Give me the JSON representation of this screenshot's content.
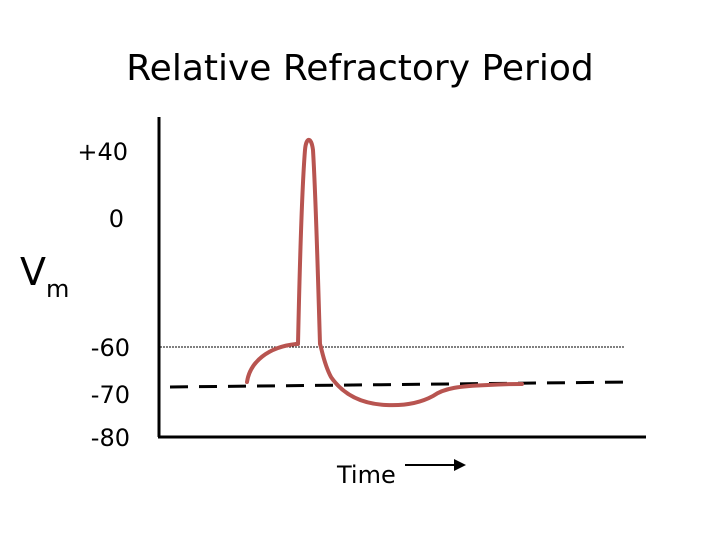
{
  "diagram": {
    "title": "Relative Refractory Period",
    "y_axis": {
      "label_main": "V",
      "label_sub": "m",
      "ticks": [
        "+40",
        "0",
        "-60",
        "-70",
        "-80"
      ]
    },
    "x_axis": {
      "label": "Time"
    },
    "colors": {
      "trace": "#b85450",
      "axes": "#000000",
      "threshold_line": "#000000",
      "resting_line": "#000000"
    }
  }
}
